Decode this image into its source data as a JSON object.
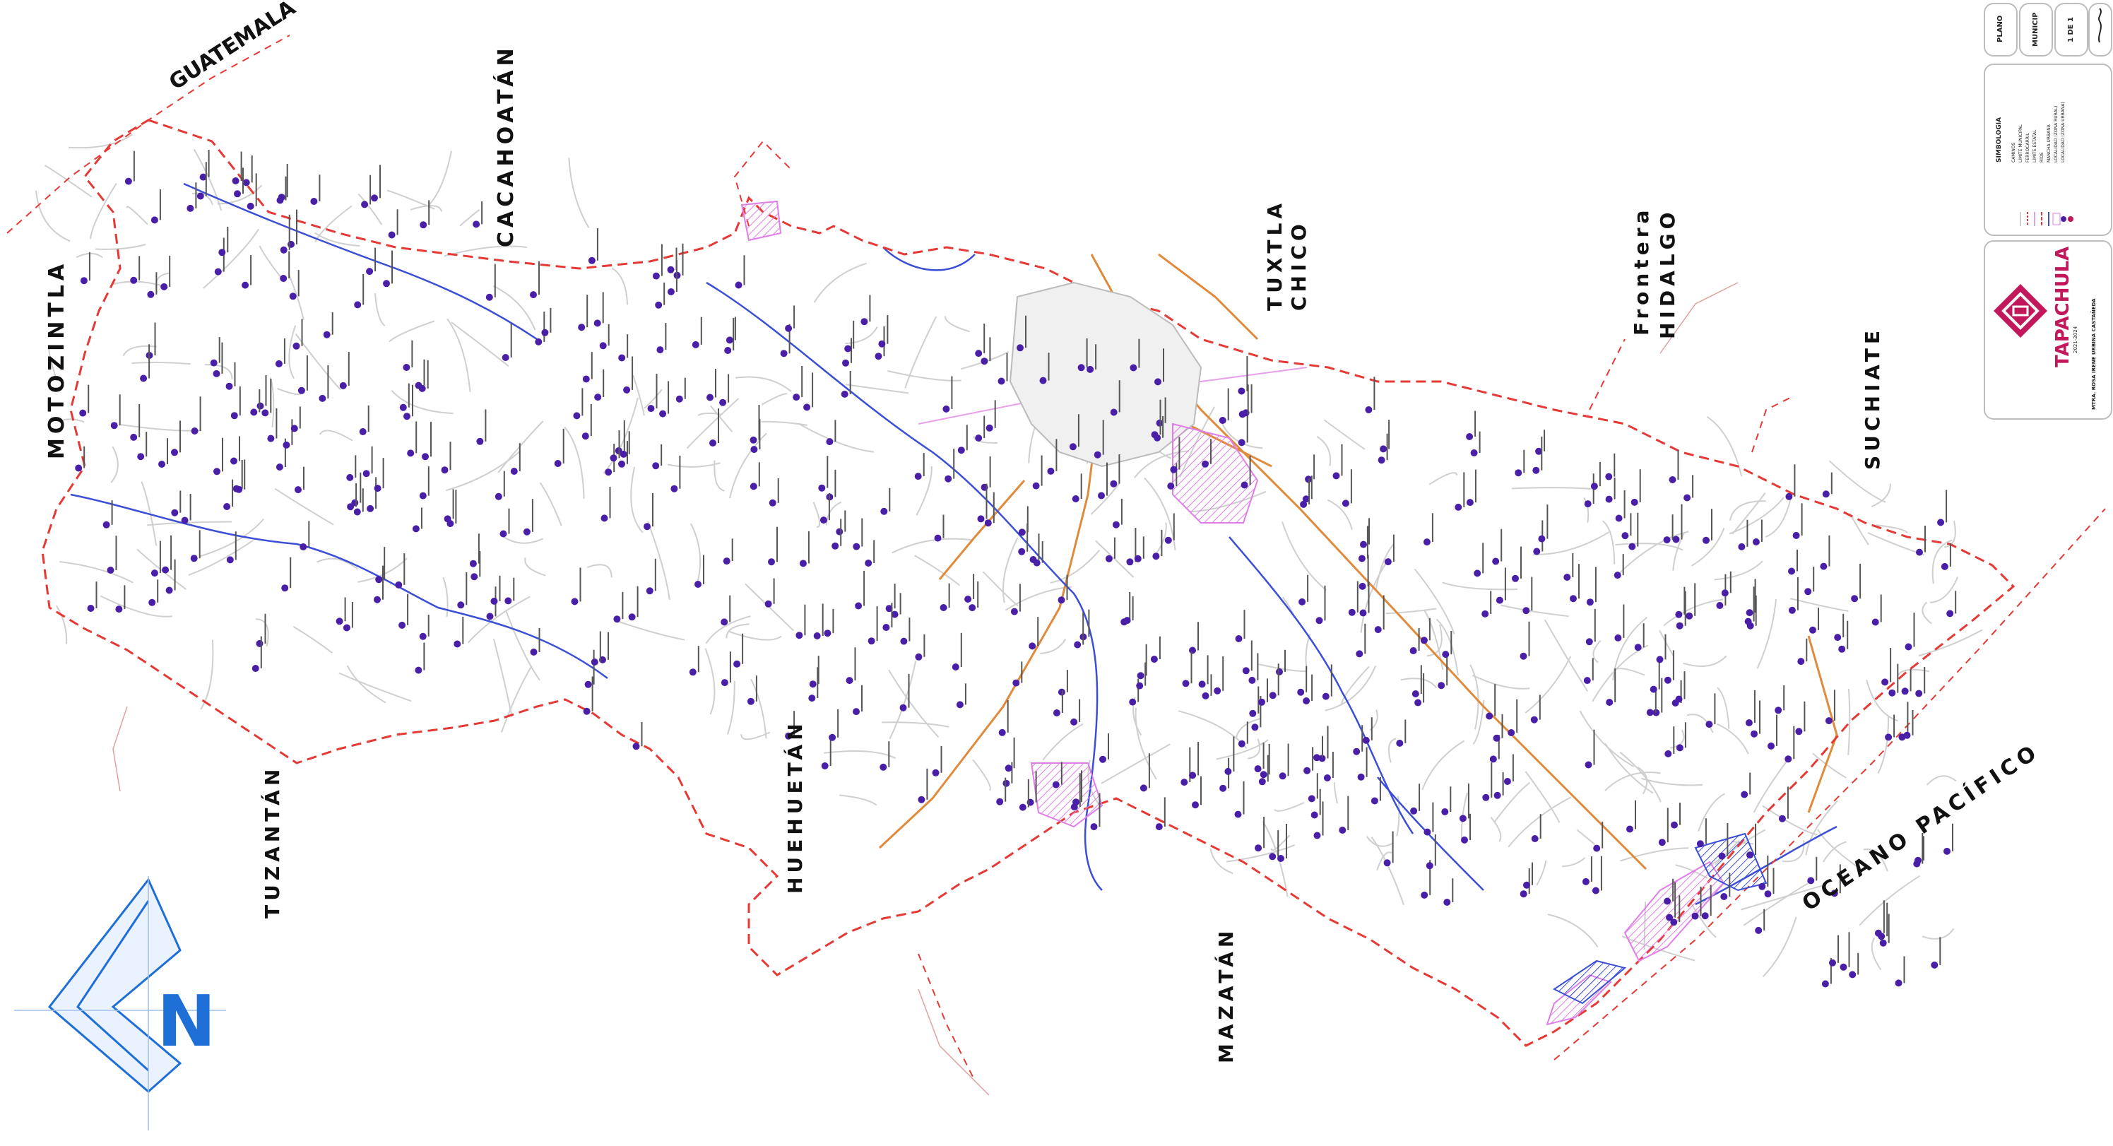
{
  "neighbors": {
    "guatemala": "GUATEMALA",
    "motozintla": "MOTOZINTLA",
    "cacahoatan": "CACAHOATÁN",
    "tuxtla": "TUXTLA",
    "chico": "CHICO",
    "frontera": "Frontera",
    "hidalgo": "HIDALGO",
    "suchiate": "SUCHIATE",
    "tuzantan": "TUZANTÁN",
    "huehuetan": "HUEHUETÁN",
    "mazatan": "MAZATÁN",
    "oceano": "OCEANO PACÍFICO"
  },
  "title_block": {
    "plano": "PLANO",
    "municipio": "MUNICIP",
    "sheet": "1 DE 1",
    "simbologia": "SIMBOLOGIA",
    "legend_items": [
      "CAMINOS",
      "LÍMITE MUNICIPAL",
      "FERROCARRIL",
      "LÍMITE ESTATAL",
      "RÍOS",
      "MANCHA URBANA",
      "LOCALIDAD (ZONA RURAL)",
      "LOCALIDAD (ZONA URBANA)"
    ],
    "brand": "TAPACHULA",
    "brand_sub": "2021-2024",
    "credits": "MTRA. ROSA IRENE URBINA CASTAÑEDA"
  },
  "colors": {
    "border": "#e53935",
    "locality": "#4a1fa8",
    "river": "#3b4fd6",
    "road": "#c9c9c9",
    "highway": "#e08a3c",
    "urban": "#e6a0ea",
    "brand": "#c2185b",
    "north": "#1e6fd6"
  },
  "north_icon": "north-arrow-icon",
  "north_letter": "N"
}
